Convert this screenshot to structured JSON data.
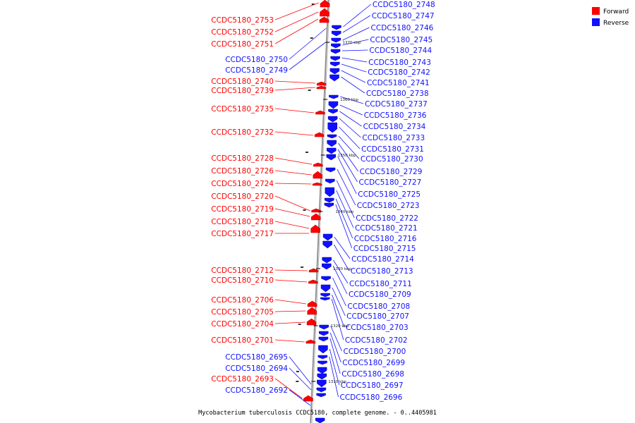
{
  "caption": "Mycobacterium tuberculosis CCDC5180, complete genome. - 0..4405981",
  "legend": [
    {
      "label": "Forward",
      "color": "#ff0000"
    },
    {
      "label": "Reverse",
      "color": "#1010ff"
    }
  ],
  "colors": {
    "forward": "#ff0000",
    "reverse": "#1010ff",
    "backbone": "#888888"
  },
  "scale_labels": [
    "1370 kbp",
    "1360 kbp",
    "1350 kbp",
    "1340 kbp",
    "1330 kbp",
    "1320 kbp",
    "1310 kbp"
  ],
  "forward_genes": [
    "CCDC5180_2753",
    "CCDC5180_2752",
    "CCDC5180_2751",
    "CCDC5180_2740",
    "CCDC5180_2739",
    "CCDC5180_2735",
    "CCDC5180_2732",
    "CCDC5180_2728",
    "CCDC5180_2726",
    "CCDC5180_2724",
    "CCDC5180_2720",
    "CCDC5180_2719",
    "CCDC5180_2718",
    "CCDC5180_2717",
    "CCDC5180_2712",
    "CCDC5180_2710",
    "CCDC5180_2706",
    "CCDC5180_2705",
    "CCDC5180_2704",
    "CCDC5180_2701",
    "CCDC5180_2693"
  ],
  "reverse_left_genes": [
    "CCDC5180_2750",
    "CCDC5180_2749",
    "CCDC5180_2695",
    "CCDC5180_2694",
    "CCDC5180_2692"
  ],
  "reverse_genes": [
    "CCDC5180_2748",
    "CCDC5180_2747",
    "CCDC5180_2746",
    "CCDC5180_2745",
    "CCDC5180_2744",
    "CCDC5180_2743",
    "CCDC5180_2742",
    "CCDC5180_2741",
    "CCDC5180_2738",
    "CCDC5180_2737",
    "CCDC5180_2736",
    "CCDC5180_2734",
    "CCDC5180_2733",
    "CCDC5180_2731",
    "CCDC5180_2730",
    "CCDC5180_2729",
    "CCDC5180_2727",
    "CCDC5180_2725",
    "CCDC5180_2723",
    "CCDC5180_2722",
    "CCDC5180_2721",
    "CCDC5180_2716",
    "CCDC5180_2715",
    "CCDC5180_2714",
    "CCDC5180_2713",
    "CCDC5180_2711",
    "CCDC5180_2709",
    "CCDC5180_2708",
    "CCDC5180_2707",
    "CCDC5180_2703",
    "CCDC5180_2702",
    "CCDC5180_2700",
    "CCDC5180_2699",
    "CCDC5180_2698",
    "CCDC5180_2697",
    "CCDC5180_2696"
  ]
}
